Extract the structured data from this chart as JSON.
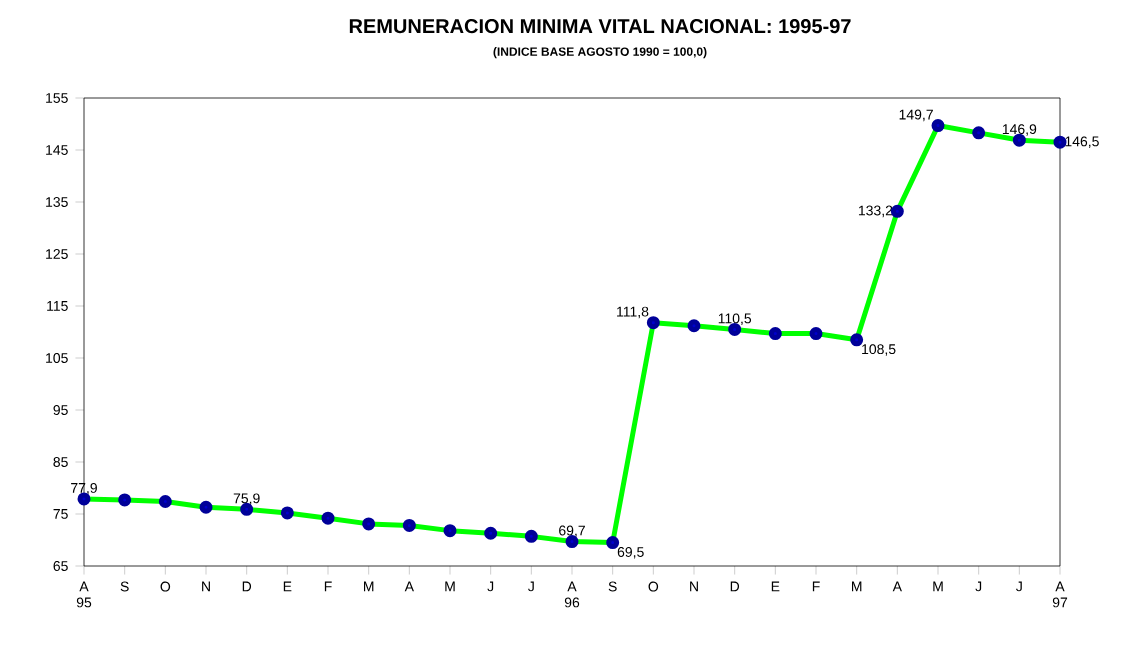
{
  "chart_data": {
    "type": "line",
    "title": "REMUNERACION MINIMA VITAL NACIONAL: 1995-97",
    "subtitle": "(INDICE BASE AGOSTO 1990 = 100,0)",
    "categories": [
      "A 95",
      "S",
      "O",
      "N",
      "D",
      "E",
      "F",
      "M",
      "A",
      "M",
      "J",
      "J",
      "A 96",
      "S",
      "O",
      "N",
      "D",
      "E",
      "F",
      "M",
      "A",
      "M",
      "J",
      "J",
      "A 97"
    ],
    "series": [
      {
        "color": "#00ff00",
        "values": [
          77.9,
          77.7,
          77.4,
          76.3,
          75.9,
          75.2,
          74.2,
          73.1,
          72.8,
          71.8,
          71.3,
          70.7,
          69.7,
          69.5,
          111.8,
          111.2,
          110.5,
          109.7,
          109.7,
          108.5,
          133.2,
          149.7,
          148.3,
          146.9,
          146.5
        ],
        "value_labels": [
          "77,9",
          null,
          null,
          null,
          "75,9",
          null,
          null,
          null,
          null,
          null,
          null,
          null,
          "69,7",
          "69,5",
          "111,8",
          null,
          "110,5",
          null,
          null,
          "108,5",
          "133,2",
          "149,7",
          null,
          "146,9",
          "146,5"
        ]
      }
    ],
    "marker": "circle",
    "grid": false,
    "ylim": [
      65,
      155
    ],
    "yticks": [
      65,
      75,
      85,
      95,
      105,
      115,
      125,
      135,
      145,
      155
    ]
  }
}
